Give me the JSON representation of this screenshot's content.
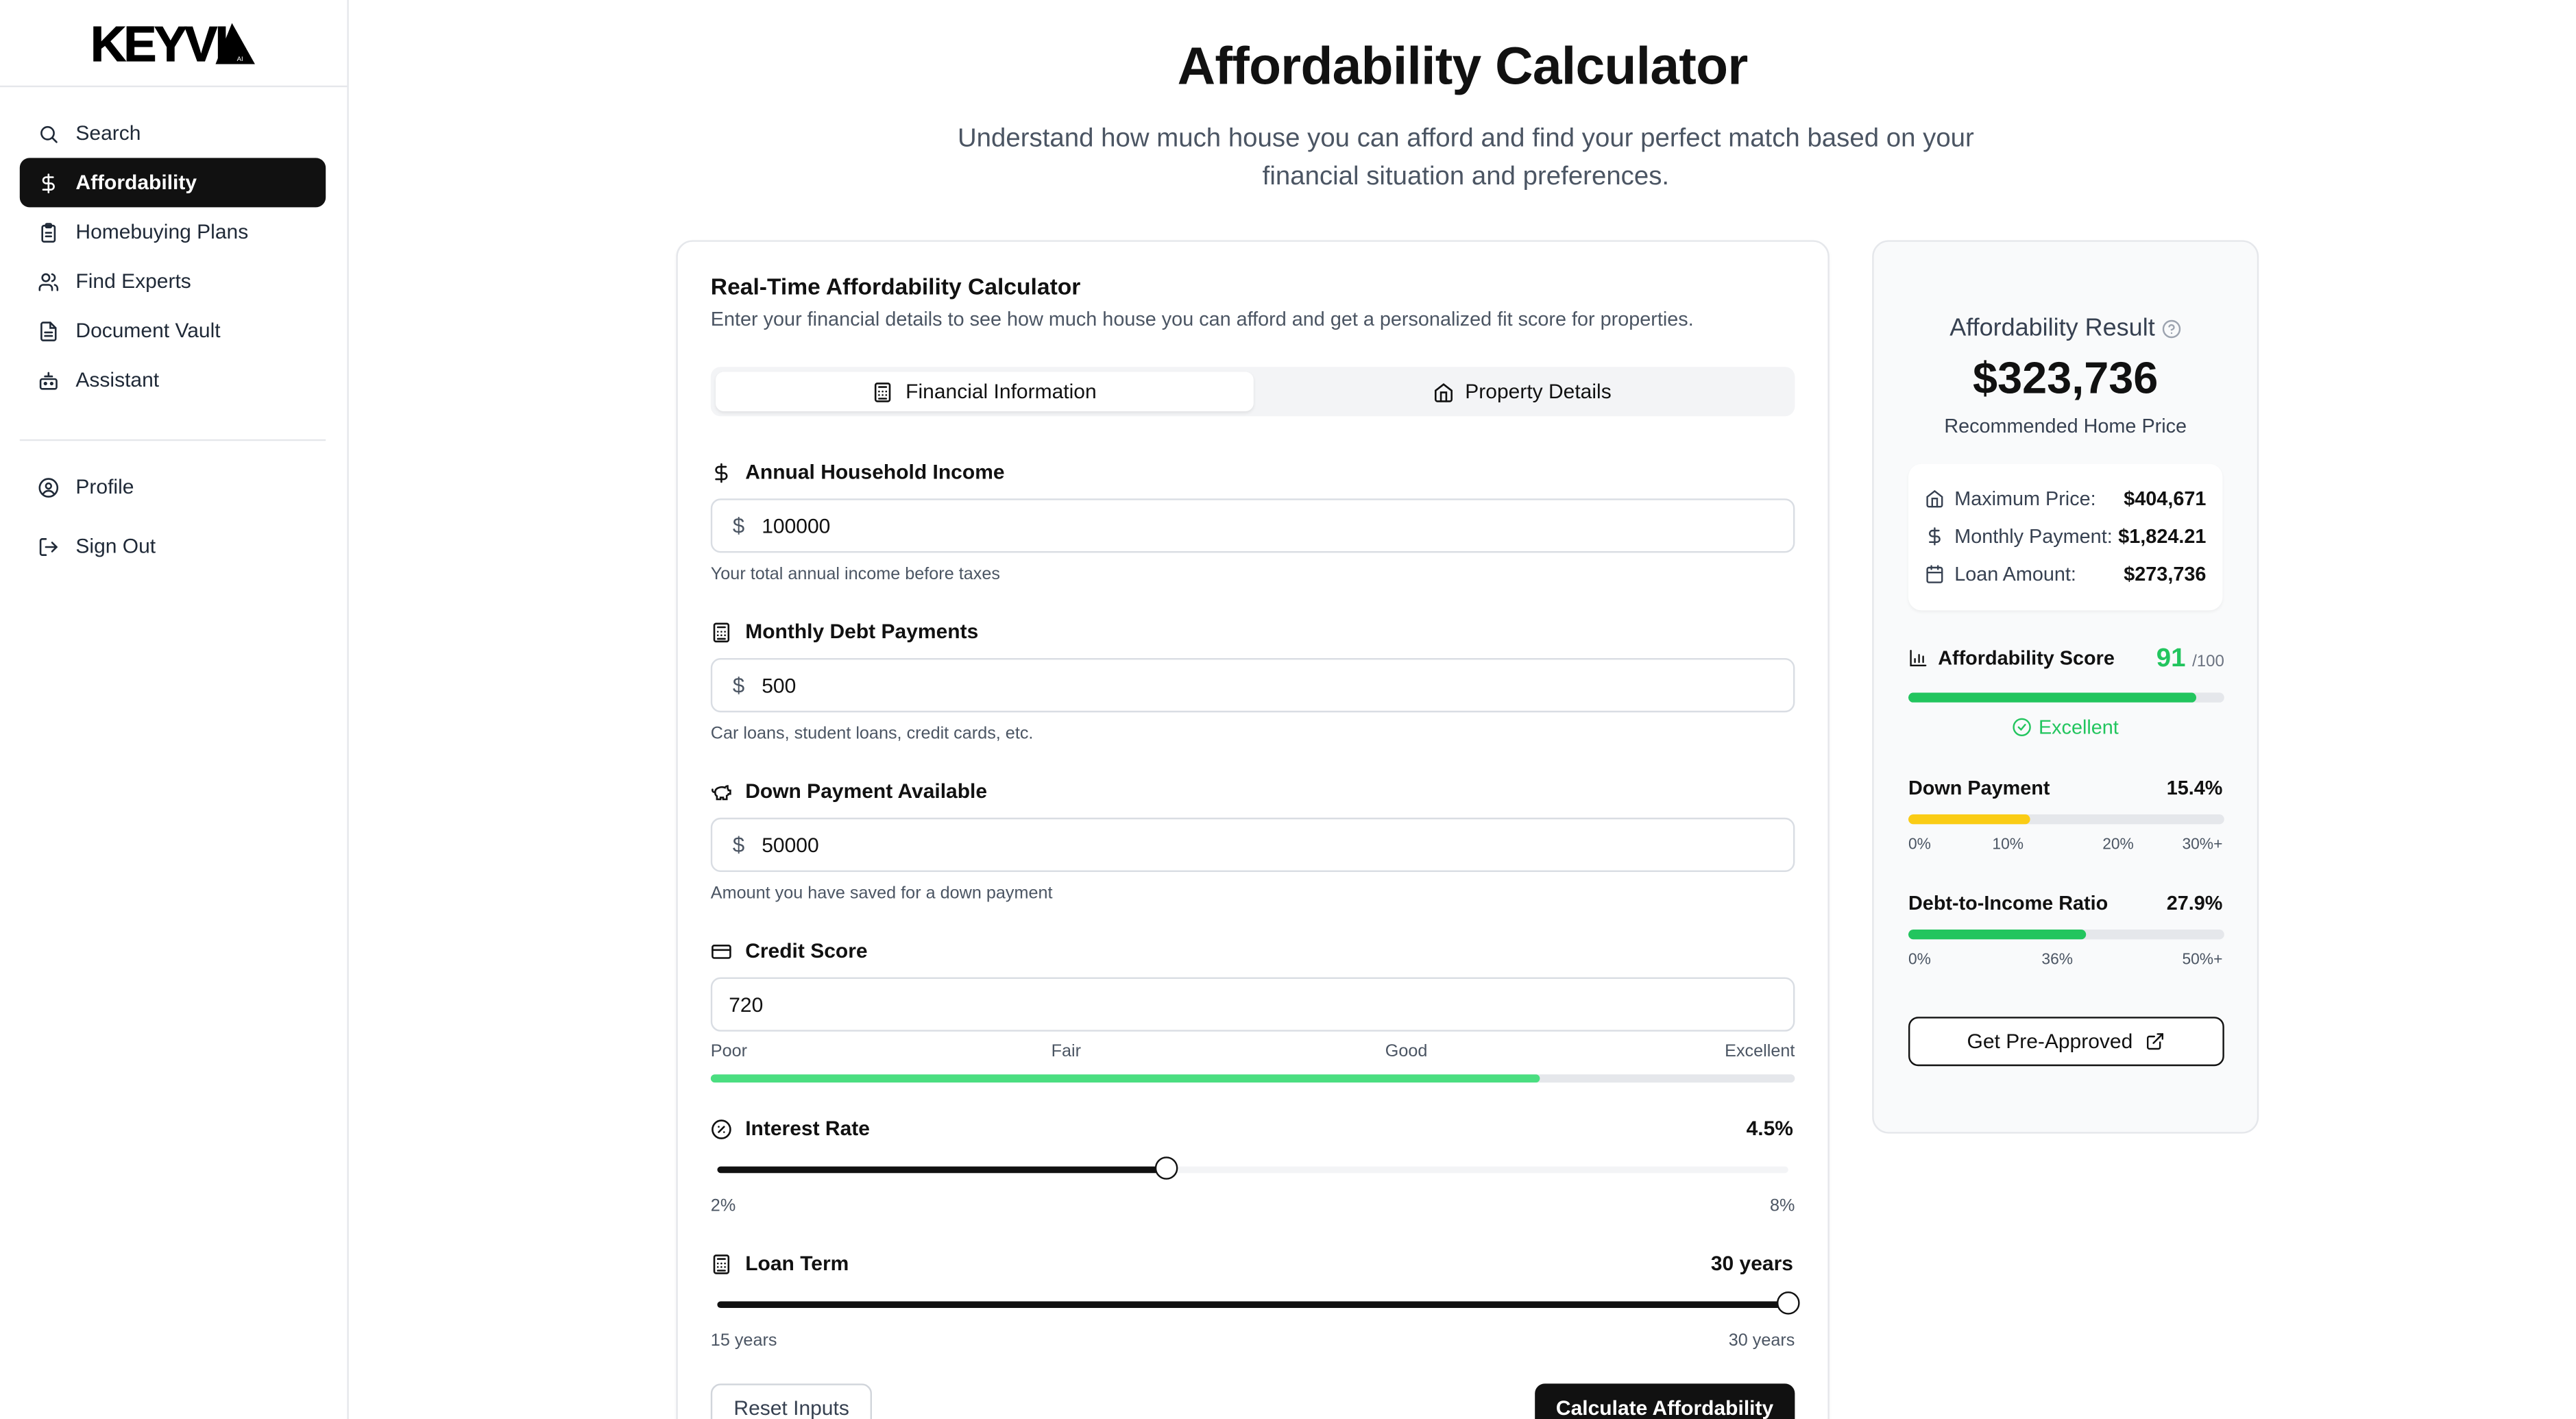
{
  "brand": {
    "logo_text": "KEYVI",
    "logo_suffix": "AI"
  },
  "sidebar": {
    "items": [
      {
        "label": "Search",
        "icon": "search-icon"
      },
      {
        "label": "Affordability",
        "icon": "dollar-icon",
        "active": true
      },
      {
        "label": "Homebuying Plans",
        "icon": "clipboard-icon"
      },
      {
        "label": "Find Experts",
        "icon": "users-icon"
      },
      {
        "label": "Document Vault",
        "icon": "file-icon"
      },
      {
        "label": "Assistant",
        "icon": "bot-icon"
      }
    ],
    "bottom_items": [
      {
        "label": "Profile",
        "icon": "user-circle-icon"
      },
      {
        "label": "Sign Out",
        "icon": "sign-out-icon"
      }
    ]
  },
  "header": {
    "title": "Affordability Calculator",
    "subtitle": "Understand how much house you can afford and find your perfect match based on your financial situation and preferences."
  },
  "calculator": {
    "title": "Real-Time Affordability Calculator",
    "description": "Enter your financial details to see how much house you can afford and get a personalized fit score for properties.",
    "tabs": [
      {
        "label": "Financial Information",
        "icon": "calculator-icon",
        "active": true
      },
      {
        "label": "Property Details",
        "icon": "home-icon",
        "active": false
      }
    ],
    "annual_income": {
      "label": "Annual Household Income",
      "currency": "$",
      "value": "100000",
      "hint": "Your total annual income before taxes"
    },
    "monthly_debt": {
      "label": "Monthly Debt Payments",
      "currency": "$",
      "value": "500",
      "hint": "Car loans, student loans, credit cards, etc."
    },
    "down_payment": {
      "label": "Down Payment Available",
      "currency": "$",
      "value": "50000",
      "hint": "Amount you have saved for a down payment"
    },
    "credit_score": {
      "label": "Credit Score",
      "value": "720",
      "scale": [
        "Poor",
        "Fair",
        "Good",
        "Excellent"
      ],
      "fill_fraction": 0.765,
      "fill_color": "#4ade80"
    },
    "interest_rate": {
      "label": "Interest Rate",
      "value": "4.5%",
      "min_label": "2%",
      "max_label": "8%",
      "fraction": 0.42
    },
    "loan_term": {
      "label": "Loan Term",
      "value": "30 years",
      "min_label": "15 years",
      "max_label": "30 years",
      "fraction": 1.0
    },
    "reset_label": "Reset Inputs",
    "calculate_label": "Calculate Affordability"
  },
  "result": {
    "title": "Affordability Result",
    "price": "$323,736",
    "price_label": "Recommended Home Price",
    "rows": [
      {
        "label": "Maximum Price:",
        "value": "$404,671",
        "icon": "home-icon"
      },
      {
        "label": "Monthly Payment:",
        "value": "$1,824.21",
        "icon": "dollar-icon"
      },
      {
        "label": "Loan Amount:",
        "value": "$273,736",
        "icon": "calendar-icon"
      }
    ],
    "score": {
      "label": "Affordability Score",
      "value": "91",
      "max": "/100",
      "fraction": 0.91,
      "rating": "Excellent",
      "color": "#22c55e"
    },
    "down_payment": {
      "label": "Down Payment",
      "value": "15.4%",
      "fraction": 0.385,
      "color": "#facc15",
      "ticks": [
        "0%",
        "10%",
        "20%",
        "30%+"
      ]
    },
    "dti": {
      "label": "Debt-to-Income Ratio",
      "value": "27.9%",
      "fraction": 0.56,
      "color": "#22c55e",
      "ticks": [
        "0%",
        "36%",
        "50%+"
      ]
    },
    "preapproved_label": "Get Pre-Approved"
  },
  "colors": {
    "accent": "#111111",
    "success": "#22c55e",
    "warning": "#facc15",
    "credit_fill": "#4ade80"
  }
}
